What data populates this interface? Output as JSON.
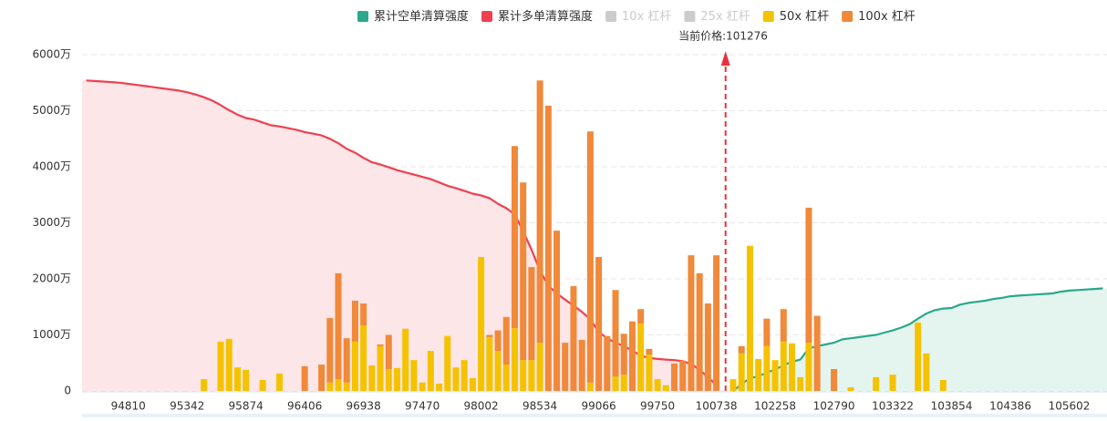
{
  "chart_data": {
    "type": "liquidation",
    "annotation": "当前价格:101276",
    "categories": [
      null,
      null,
      null,
      null,
      null,
      "94810",
      null,
      null,
      null,
      null,
      null,
      null,
      "95342",
      null,
      null,
      null,
      null,
      null,
      null,
      "95874",
      null,
      null,
      null,
      null,
      null,
      null,
      "96406",
      null,
      null,
      null,
      null,
      null,
      null,
      "96938",
      null,
      null,
      null,
      null,
      null,
      null,
      "97470",
      null,
      null,
      null,
      null,
      null,
      null,
      "98002",
      null,
      null,
      null,
      null,
      null,
      null,
      "98534",
      null,
      null,
      null,
      null,
      null,
      null,
      "99066",
      null,
      null,
      null,
      null,
      null,
      null,
      "99750",
      null,
      null,
      null,
      null,
      null,
      null,
      "100738",
      null,
      null,
      null,
      null,
      null,
      null,
      "102258",
      null,
      null,
      null,
      null,
      null,
      null,
      "102790",
      null,
      null,
      null,
      null,
      null,
      null,
      "103322",
      null,
      null,
      null,
      null,
      null,
      null,
      "103854",
      null,
      null,
      null,
      null,
      null,
      null,
      "104386",
      null,
      null,
      null,
      null,
      null,
      null,
      "105602",
      null,
      null,
      null,
      null
    ],
    "ylim": [
      0,
      6000
    ],
    "yticks": [
      0,
      {
        "value": 1000,
        "label": "1000万"
      },
      {
        "value": 2000,
        "label": "2000万"
      },
      {
        "value": 3000,
        "label": "3000万"
      },
      {
        "value": 4000,
        "label": "4000万"
      },
      {
        "value": 5000,
        "label": "5000万"
      },
      {
        "value": 6000,
        "label": "6000万"
      }
    ],
    "grid": true,
    "series": [
      {
        "name": "累计空单清算强度",
        "kind": "area",
        "color": "#2aa88c",
        "values": [
          null,
          null,
          null,
          null,
          null,
          null,
          null,
          null,
          null,
          null,
          null,
          null,
          null,
          null,
          null,
          null,
          null,
          null,
          null,
          null,
          null,
          null,
          null,
          null,
          null,
          null,
          null,
          null,
          null,
          null,
          null,
          null,
          null,
          null,
          null,
          null,
          null,
          null,
          null,
          null,
          null,
          null,
          null,
          null,
          null,
          null,
          null,
          null,
          null,
          null,
          null,
          null,
          null,
          null,
          null,
          null,
          null,
          null,
          null,
          null,
          null,
          null,
          null,
          null,
          null,
          null,
          null,
          null,
          null,
          null,
          null,
          null,
          null,
          null,
          null,
          null,
          null,
          0,
          120,
          230,
          260,
          330,
          380,
          460,
          520,
          560,
          760,
          800,
          830,
          860,
          920,
          940,
          960,
          980,
          1000,
          1040,
          1080,
          1130,
          1190,
          1290,
          1380,
          1440,
          1470,
          1480,
          1540,
          1570,
          1590,
          1610,
          1640,
          1660,
          1690,
          1700,
          1710,
          1720,
          1730,
          1740,
          1770,
          1790,
          1800,
          1810,
          1820,
          1830
        ]
      },
      {
        "name": "累计多单清算强度",
        "kind": "area",
        "color": "#f0404f",
        "values": [
          5540,
          5530,
          5520,
          5510,
          5500,
          5480,
          5460,
          5440,
          5420,
          5400,
          5380,
          5360,
          5330,
          5290,
          5240,
          5180,
          5100,
          5010,
          4930,
          4870,
          4840,
          4790,
          4740,
          4720,
          4690,
          4660,
          4620,
          4590,
          4560,
          4500,
          4420,
          4320,
          4250,
          4160,
          4080,
          4040,
          3990,
          3940,
          3900,
          3860,
          3820,
          3780,
          3720,
          3660,
          3620,
          3570,
          3520,
          3490,
          3440,
          3340,
          3260,
          3150,
          2850,
          2520,
          2150,
          1880,
          1740,
          1630,
          1520,
          1410,
          1280,
          1050,
          940,
          860,
          800,
          720,
          630,
          590,
          570,
          560,
          550,
          530,
          480,
          380,
          240,
          110,
          null,
          null,
          null,
          null,
          null,
          null,
          null,
          null,
          null,
          null,
          null,
          null,
          null,
          null,
          null,
          null,
          null,
          null,
          null,
          null,
          null,
          null,
          null,
          null,
          null,
          null,
          null,
          null,
          null,
          null,
          null,
          null,
          null,
          null,
          null,
          null,
          null,
          null,
          null,
          null,
          null,
          null,
          null,
          null,
          null,
          null
        ]
      },
      {
        "name": "10x 杠杆",
        "kind": "bar",
        "color": "#cccccc",
        "visible": false
      },
      {
        "name": "25x 杠杆",
        "kind": "bar",
        "color": "#cccccc",
        "visible": false
      },
      {
        "name": "50x 杠杆",
        "kind": "bar",
        "color": "#f5c200",
        "values": [
          0,
          0,
          0,
          0,
          0,
          0,
          0,
          0,
          0,
          0,
          0,
          0,
          0,
          0,
          210,
          0,
          880,
          930,
          420,
          375,
          0,
          195,
          0,
          310,
          0,
          0,
          0,
          0,
          0,
          150,
          210,
          150,
          880,
          1170,
          455,
          800,
          390,
          410,
          1110,
          550,
          150,
          715,
          130,
          980,
          420,
          550,
          230,
          2390,
          960,
          715,
          470,
          1120,
          550,
          550,
          860,
          0,
          0,
          0,
          0,
          0,
          150,
          0,
          0,
          260,
          290,
          0,
          1200,
          650,
          210,
          100,
          0,
          0,
          0,
          0,
          0,
          0,
          0,
          210,
          670,
          2590,
          570,
          800,
          550,
          880,
          850,
          245,
          860,
          0,
          0,
          0,
          0,
          65,
          0,
          0,
          245,
          0,
          290,
          0,
          0,
          1220,
          670,
          0,
          195,
          0,
          0,
          0,
          0,
          0,
          0,
          0,
          0,
          0,
          0,
          0,
          0,
          0,
          0,
          0,
          0,
          0,
          0,
          0
        ]
      },
      {
        "name": "100x 杠杆",
        "kind": "bar",
        "color": "#f0893a",
        "values": [
          0,
          0,
          0,
          0,
          0,
          0,
          0,
          0,
          0,
          0,
          0,
          0,
          0,
          0,
          0,
          0,
          0,
          0,
          0,
          0,
          0,
          0,
          0,
          0,
          0,
          0,
          440,
          0,
          470,
          1150,
          1890,
          790,
          730,
          390,
          0,
          30,
          610,
          0,
          0,
          0,
          0,
          0,
          0,
          0,
          0,
          0,
          0,
          0,
          40,
          365,
          850,
          3250,
          3170,
          1660,
          4680,
          5090,
          2860,
          860,
          1870,
          910,
          4480,
          2390,
          980,
          1540,
          730,
          1240,
          260,
          100,
          0,
          0,
          490,
          540,
          2420,
          2100,
          1560,
          2420,
          0,
          0,
          130,
          0,
          0,
          490,
          0,
          580,
          0,
          0,
          2410,
          1340,
          0,
          390,
          0,
          0,
          0,
          0,
          0,
          0,
          0,
          0,
          0,
          0,
          0,
          0,
          0,
          0,
          0,
          0,
          0,
          0,
          0,
          0,
          0,
          0,
          0,
          0,
          0,
          0,
          0,
          0,
          0,
          0,
          0,
          0
        ]
      }
    ]
  }
}
